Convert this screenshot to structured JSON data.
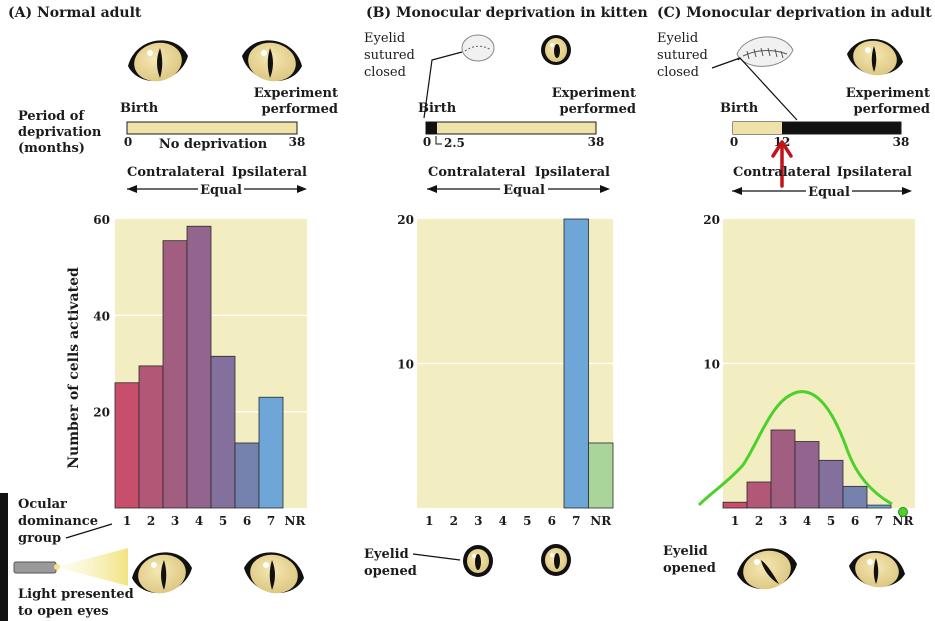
{
  "colors": {
    "plot_background": "#f3eec2",
    "timeline_fill": "#efe2a8",
    "deprivation_fill": "#111111",
    "eye_iris": "#e8d69a",
    "annotation_green": "#4bd12a",
    "annotation_red": "#c0141a"
  },
  "common": {
    "contralateral": "Contralateral",
    "ipsilateral": "Ipsilateral",
    "equal": "Equal",
    "birth": "Birth",
    "experiment_line1": "Experiment",
    "experiment_line2": "performed",
    "end_month": "38",
    "start_month": "0"
  },
  "left_labels": {
    "period_line1": "Period of",
    "period_line2": "deprivation",
    "period_line3": "(months)",
    "ocular_line1": "Ocular",
    "ocular_line2": "dominance",
    "ocular_line3": "group",
    "light_line1": "Light presented",
    "light_line2": "to open eyes"
  },
  "eyelid_labels": {
    "sutured_line1": "Eyelid",
    "sutured_line2": "sutured",
    "sutured_line3": "closed",
    "opened_line1": "Eyelid",
    "opened_line2": "opened"
  },
  "chart_data": [
    {
      "type": "bar",
      "panel": "(A)",
      "title": "(A) Normal adult",
      "timeline_label": "No deprivation",
      "ylabel": "Number of cells activated",
      "xlabel": "Ocular dominance group",
      "categories": [
        "1",
        "2",
        "3",
        "4",
        "5",
        "6",
        "7",
        "NR"
      ],
      "values": [
        26,
        29.5,
        55.5,
        58.5,
        31.5,
        13.5,
        23,
        0
      ],
      "bar_colors": [
        "#c84f6c",
        "#b35776",
        "#a25e81",
        "#93658e",
        "#83709c",
        "#7582ae",
        "#6ea6d8",
        "#6ea6d8"
      ],
      "ylim": [
        0,
        60
      ],
      "yticks": [
        "20",
        "40",
        "60"
      ],
      "ytick_values": [
        20,
        40,
        60
      ]
    },
    {
      "type": "bar",
      "panel": "(B)",
      "title": "(B) Monocular deprivation in kitten",
      "timeline_mark": "2.5",
      "categories": [
        "1",
        "2",
        "3",
        "4",
        "5",
        "6",
        "7",
        "NR"
      ],
      "values": [
        0,
        0,
        0,
        0,
        0,
        0,
        20,
        4.5
      ],
      "bar_colors": [
        "#c84f6c",
        "#b35776",
        "#a25e81",
        "#93658e",
        "#83709c",
        "#7582ae",
        "#6ea6d8",
        "#a9d49a"
      ],
      "ylim": [
        0,
        20
      ],
      "yticks": [
        "10",
        "20"
      ],
      "ytick_values": [
        10,
        20
      ]
    },
    {
      "type": "bar",
      "panel": "(C)",
      "title": "(C) Monocular deprivation in adult",
      "timeline_mark": "12",
      "categories": [
        "1",
        "2",
        "3",
        "4",
        "5",
        "6",
        "7",
        "NR"
      ],
      "values": [
        0.4,
        1.8,
        5.4,
        4.6,
        3.3,
        1.5,
        0.2,
        0
      ],
      "bar_colors": [
        "#c84f6c",
        "#b35776",
        "#a25e81",
        "#93658e",
        "#83709c",
        "#7582ae",
        "#6ea6d8",
        "#6ea6d8"
      ],
      "ylim": [
        0,
        20
      ],
      "yticks": [
        "10",
        "20"
      ],
      "ytick_values": [
        10,
        20
      ]
    }
  ]
}
